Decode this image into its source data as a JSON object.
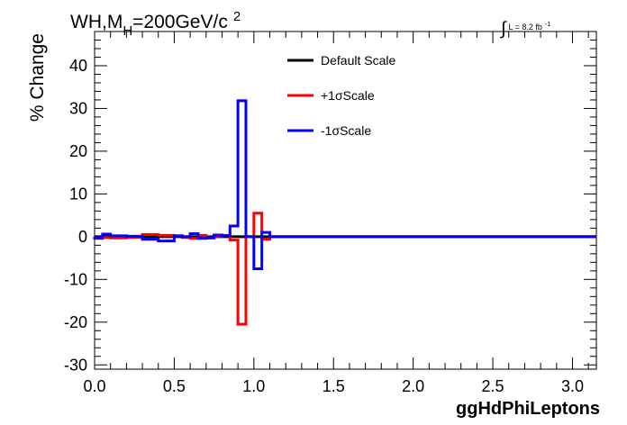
{
  "chart_data": {
    "type": "line",
    "step": true,
    "title": {
      "main": "WH,M",
      "sub": "H",
      "rest": "=200GeV/c",
      "sup": "2"
    },
    "luminosity": {
      "integral": "∫",
      "text": "L = 8.2 fb",
      "sup": "-1"
    },
    "xlabel": "ggHdPhiLeptons",
    "ylabel": "% Change",
    "xlim": [
      0,
      3.15
    ],
    "ylim": [
      -31,
      48
    ],
    "xticks": [
      "0.0",
      "0.5",
      "1.0",
      "1.5",
      "2.0",
      "2.5",
      "3.0"
    ],
    "xtick_values": [
      0,
      0.5,
      1.0,
      1.5,
      2.0,
      2.5,
      3.0
    ],
    "yticks": [
      "-30",
      "-20",
      "-10",
      "0",
      "10",
      "20",
      "30",
      "40"
    ],
    "ytick_values": [
      -30,
      -20,
      -10,
      0,
      10,
      20,
      30,
      40
    ],
    "legend_position": "top-right",
    "bin_edges": [
      0,
      0.05,
      0.1,
      0.2,
      0.3,
      0.4,
      0.5,
      0.55,
      0.6,
      0.65,
      0.7,
      0.75,
      0.8,
      0.85,
      0.9,
      0.95,
      1.0,
      1.05,
      1.1,
      1.15,
      3.15
    ],
    "series": [
      {
        "name": "Default Scale",
        "color": "#000000",
        "values": [
          0,
          0,
          0,
          0,
          0,
          0,
          0,
          0,
          0,
          0,
          0,
          0,
          0,
          0,
          0,
          0,
          0,
          0,
          0,
          0
        ]
      },
      {
        "name": "+1σScale",
        "color": "#ff0000",
        "values": [
          -0.4,
          -0.2,
          -0.3,
          -0.2,
          0.5,
          0.3,
          0.2,
          -0.2,
          -0.4,
          0.3,
          -0.3,
          0.1,
          0.3,
          -0.8,
          -20.5,
          0.0,
          5.5,
          -0.6,
          0.0,
          0.0
        ]
      },
      {
        "name": "-1σScale",
        "color": "#0000ff",
        "values": [
          -0.3,
          0.6,
          0.2,
          0.1,
          -0.6,
          -1.0,
          0.2,
          0.0,
          0.7,
          -0.4,
          -0.3,
          0.4,
          0.2,
          2.5,
          31.8,
          0.0,
          -7.5,
          1.0,
          0.0,
          0.0
        ]
      }
    ]
  }
}
